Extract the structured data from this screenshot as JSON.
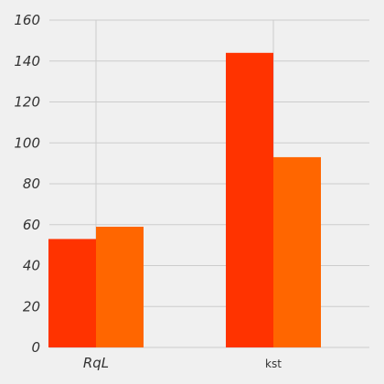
{
  "chart_data": {
    "type": "bar",
    "categories": [
      "RqL",
      "kst"
    ],
    "series": [
      {
        "values": [
          53,
          144
        ],
        "color": "#ff3300"
      },
      {
        "values": [
          59,
          93
        ],
        "color": "#ff6600"
      }
    ],
    "title": "",
    "xlabel": "",
    "ylabel": "",
    "ylim": [
      0,
      160
    ],
    "yticks": [
      0,
      20,
      40,
      60,
      80,
      100,
      120,
      140,
      160
    ],
    "grid": true,
    "background": "#f0f0f0",
    "grid_color": "#cccccc"
  }
}
